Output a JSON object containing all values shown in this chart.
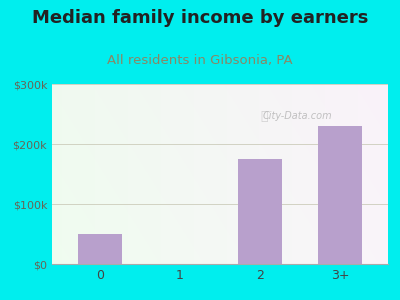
{
  "title": "Median family income by earners",
  "subtitle": "All residents in Gibsonia, PA",
  "categories": [
    "0",
    "1",
    "2",
    "3+"
  ],
  "values": [
    50000,
    0,
    175000,
    230000
  ],
  "bar_color": "#b8a0cc",
  "title_color": "#222222",
  "subtitle_color": "#888866",
  "outer_bg_color": "#00EEEE",
  "ylim": [
    0,
    300000
  ],
  "yticks": [
    0,
    100000,
    200000,
    300000
  ],
  "ytick_labels": [
    "$0",
    "$100k",
    "$200k",
    "$300k"
  ],
  "watermark": "City-Data.com",
  "title_fontsize": 13,
  "subtitle_fontsize": 9.5
}
